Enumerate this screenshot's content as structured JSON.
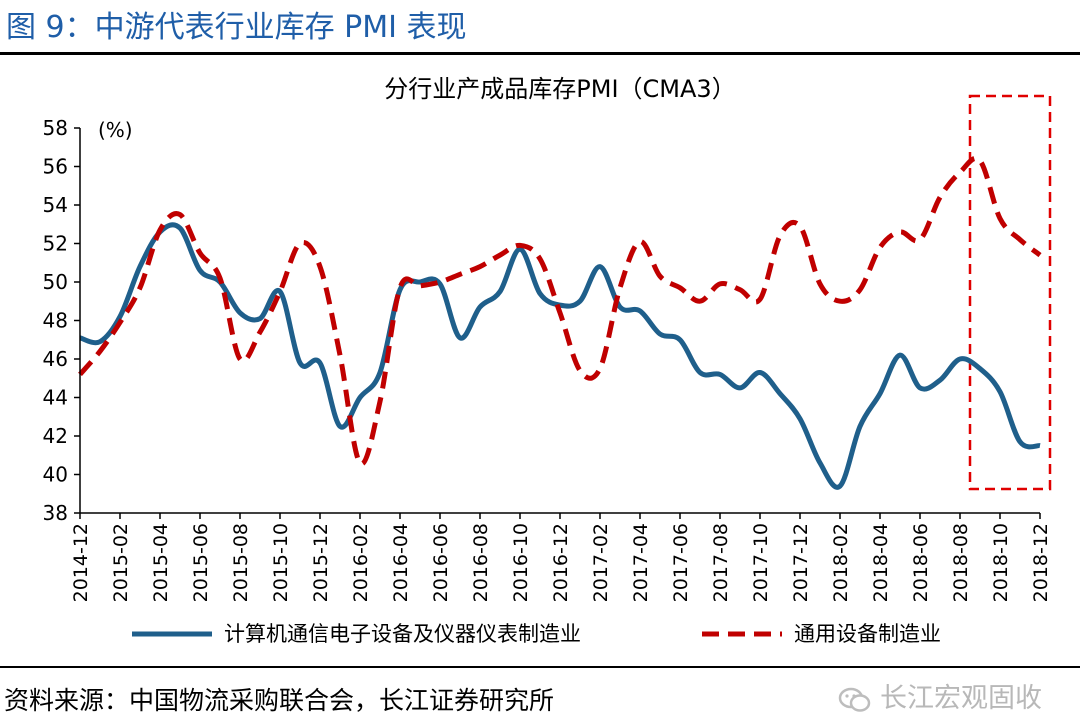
{
  "figure_title": "图 9：中游代表行业库存 PMI 表现",
  "source_note": "资料来源：中国物流采购联合会，长江证券研究所",
  "watermark": "长江宏观固收",
  "colors": {
    "series1": "#1f5f8b",
    "series2": "#c00000",
    "title": "#1f5ea8",
    "box": "#e00000"
  },
  "chart_data": {
    "type": "line",
    "title": "分行业产成品库存PMI（CMA3）",
    "ylabel": "(%)",
    "xlabel": "",
    "ylim": [
      38,
      58
    ],
    "yticks": [
      38,
      40,
      42,
      44,
      46,
      48,
      50,
      52,
      54,
      56,
      58
    ],
    "tick_labels": [
      "2014-12",
      "2015-02",
      "2015-04",
      "2015-06",
      "2015-08",
      "2015-10",
      "2015-12",
      "2016-02",
      "2016-04",
      "2016-06",
      "2016-08",
      "2016-10",
      "2016-12",
      "2017-02",
      "2017-04",
      "2017-06",
      "2017-08",
      "2017-10",
      "2017-12",
      "2018-02",
      "2018-04",
      "2018-06",
      "2018-08",
      "2018-10",
      "2018-12"
    ],
    "x": [
      "2014-12",
      "2015-01",
      "2015-02",
      "2015-03",
      "2015-04",
      "2015-05",
      "2015-06",
      "2015-07",
      "2015-08",
      "2015-09",
      "2015-10",
      "2015-11",
      "2015-12",
      "2016-01",
      "2016-02",
      "2016-03",
      "2016-04",
      "2016-05",
      "2016-06",
      "2016-07",
      "2016-08",
      "2016-09",
      "2016-10",
      "2016-11",
      "2016-12",
      "2017-01",
      "2017-02",
      "2017-03",
      "2017-04",
      "2017-05",
      "2017-06",
      "2017-07",
      "2017-08",
      "2017-09",
      "2017-10",
      "2017-11",
      "2017-12",
      "2018-01",
      "2018-02",
      "2018-03",
      "2018-04",
      "2018-05",
      "2018-06",
      "2018-07",
      "2018-08",
      "2018-09",
      "2018-10",
      "2018-11",
      "2018-12"
    ],
    "series": [
      {
        "name": "计算机通信电子设备及仪器仪表制造业",
        "style": "solid",
        "values": [
          47.1,
          46.9,
          48.2,
          50.8,
          52.6,
          52.8,
          50.6,
          50.0,
          48.4,
          48.1,
          49.5,
          45.8,
          45.8,
          42.5,
          44.0,
          45.3,
          49.6,
          50.0,
          49.9,
          47.1,
          48.7,
          49.5,
          51.7,
          49.4,
          48.8,
          49.0,
          50.8,
          48.7,
          48.5,
          47.3,
          47.0,
          45.3,
          45.2,
          44.5,
          45.3,
          44.2,
          42.9,
          40.6,
          39.4,
          42.5,
          44.2,
          46.2,
          44.5,
          44.9,
          46.0,
          45.5,
          44.3,
          41.7,
          41.5
        ]
      },
      {
        "name": "通用设备制造业",
        "style": "dashed",
        "values": [
          45.2,
          46.4,
          47.9,
          49.7,
          52.7,
          53.5,
          51.5,
          50.2,
          46.0,
          47.4,
          49.5,
          52.0,
          50.8,
          46.2,
          40.6,
          43.8,
          49.7,
          49.8,
          50.0,
          50.4,
          50.8,
          51.4,
          51.9,
          51.2,
          48.4,
          45.4,
          45.5,
          49.7,
          52.1,
          50.3,
          49.7,
          49.0,
          49.9,
          49.6,
          49.1,
          52.4,
          52.9,
          49.9,
          49.0,
          49.6,
          51.8,
          52.6,
          52.2,
          54.4,
          55.7,
          56.3,
          53.3,
          52.2,
          51.4
        ]
      }
    ],
    "legend": "bottom",
    "highlight_box": {
      "from": "2018-09",
      "to": "2018-12"
    }
  }
}
